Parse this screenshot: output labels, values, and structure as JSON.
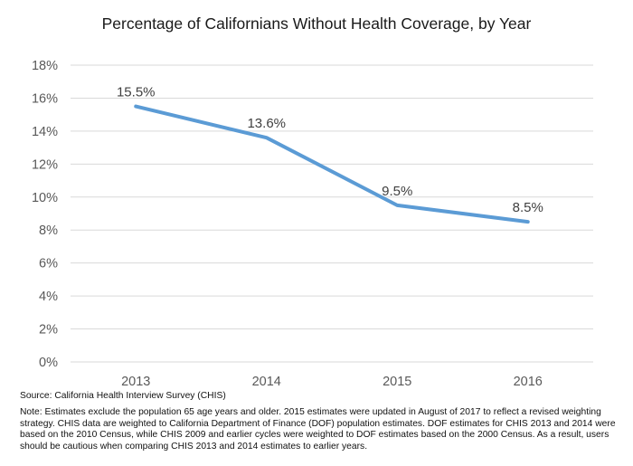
{
  "chart_data": {
    "type": "line",
    "title": "Percentage of Californians Without Health Coverage, by Year",
    "categories": [
      "2013",
      "2014",
      "2015",
      "2016"
    ],
    "series": [
      {
        "values": [
          15.5,
          13.6,
          9.5,
          8.5
        ],
        "labels": [
          "15.5%",
          "13.6%",
          "9.5%",
          "8.5%"
        ]
      }
    ],
    "ylim": [
      0,
      18
    ],
    "yticks": [
      "0%",
      "2%",
      "4%",
      "6%",
      "8%",
      "10%",
      "12%",
      "14%",
      "16%",
      "18%"
    ],
    "grid": true,
    "line_color": "#5b9bd5",
    "grid_color": "#d9d9d9"
  },
  "footer": {
    "source": "Source: California Health Interview Survey (CHIS)",
    "note": "Note: Estimates exclude the population 65 age years and older. 2015 estimates were updated in August of 2017 to reflect a revised weighting strategy. CHIS data are weighted to California Department of Finance (DOF) population estimates. DOF estimates for CHIS 2013 and 2014 were based on the 2010 Census, while CHIS 2009 and earlier cycles were weighted to DOF estimates based on the 2000 Census. As a result, users should be cautious when comparing CHIS 2013 and 2014 estimates to earlier years."
  }
}
